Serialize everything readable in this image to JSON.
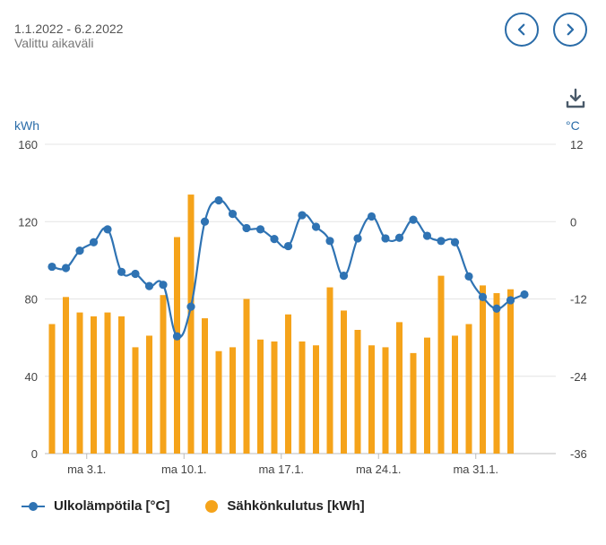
{
  "header": {
    "range": "1.1.2022 - 6.2.2022",
    "range_label": "Valittu aikaväli"
  },
  "nav": {
    "prev_icon": "chevron-left-icon",
    "next_icon": "chevron-right-icon",
    "download_icon": "download-icon"
  },
  "units": {
    "left": "kWh",
    "right": "°C"
  },
  "legend": {
    "temp": "Ulkolämpötila [°C]",
    "energy": "Sähkönkulutus [kWh]"
  },
  "colors": {
    "temp": "#2f73b3",
    "energy": "#f5a31a",
    "accent": "#2a6ca8"
  },
  "chart_data": {
    "type": "bar",
    "x_tick_labels": [
      "ma 3.1.",
      "ma 10.1.",
      "ma 17.1.",
      "ma 24.1.",
      "ma 31.1."
    ],
    "x_tick_index": [
      2,
      9,
      16,
      23,
      30
    ],
    "y_left": {
      "label": "kWh",
      "ticks": [
        0,
        40,
        80,
        120,
        160
      ],
      "range": [
        0,
        160
      ]
    },
    "y_right": {
      "label": "°C",
      "ticks": [
        -36,
        -24,
        -12,
        0,
        12
      ],
      "range": [
        -36,
        12
      ]
    },
    "series": [
      {
        "name": "Sähkönkulutus [kWh]",
        "type": "bar",
        "axis": "left",
        "values": [
          67,
          81,
          73,
          71,
          73,
          71,
          55,
          61,
          82,
          112,
          134,
          70,
          53,
          55,
          80,
          59,
          58,
          72,
          58,
          56,
          86,
          74,
          64,
          56,
          55,
          68,
          52,
          60,
          92,
          61,
          67,
          87,
          83,
          85
        ]
      },
      {
        "name": "Ulkolämpötila [°C]",
        "type": "line",
        "axis": "right",
        "values": [
          -7,
          -7.2,
          -4.5,
          -3.2,
          -1.2,
          -7.8,
          -8.1,
          -10,
          -9.8,
          -17.8,
          -13.2,
          0,
          3.3,
          1.2,
          -1,
          -1.2,
          -2.7,
          -3.8,
          1,
          -0.8,
          -3,
          -8.4,
          -2.6,
          0.8,
          -2.6,
          -2.5,
          0.3,
          -2.2,
          -3,
          -3.2,
          -8.5,
          -11.7,
          -13.5,
          -12.2,
          -11.3
        ]
      }
    ],
    "grid": true
  }
}
